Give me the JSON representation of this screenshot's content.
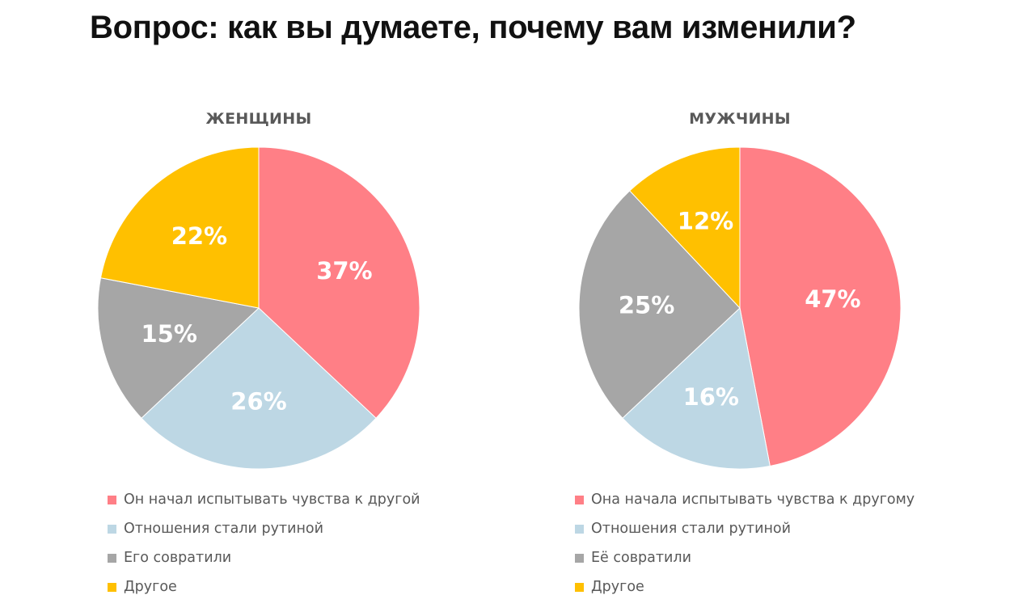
{
  "title": "Вопрос: как вы думаете, почему вам изменили?",
  "colors": {
    "red": "#FF7F86",
    "blue": "#BDD7E4",
    "gray": "#A6A6A6",
    "yellow": "#FFC000"
  },
  "chart_data": [
    {
      "type": "pie",
      "title": "ЖЕНЩИНЫ",
      "categories": [
        "Он начал испытывать чувства к другой",
        "Отношения стали рутиной",
        "Его совратили",
        "Другое"
      ],
      "values": [
        37,
        26,
        15,
        22
      ],
      "labels": [
        "37%",
        "26%",
        "15%",
        "22%"
      ],
      "colors": [
        "#FF7F86",
        "#BDD7E4",
        "#A6A6A6",
        "#FFC000"
      ],
      "legend_position": "bottom"
    },
    {
      "type": "pie",
      "title": "МУЖЧИНЫ",
      "categories": [
        "Она начала испытывать чувства к другому",
        "Отношения стали рутиной",
        "Её совратили",
        "Другое"
      ],
      "values": [
        47,
        16,
        25,
        12
      ],
      "labels": [
        "47%",
        "16%",
        "25%",
        "12%"
      ],
      "colors": [
        "#FF7F86",
        "#BDD7E4",
        "#A6A6A6",
        "#FFC000"
      ],
      "legend_position": "bottom"
    }
  ]
}
